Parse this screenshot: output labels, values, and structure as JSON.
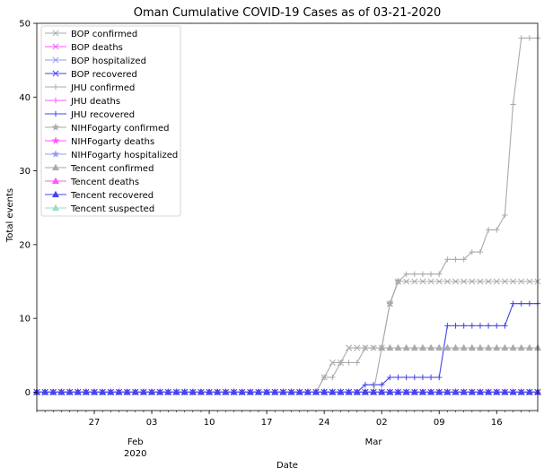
{
  "chart_data": {
    "type": "line",
    "title": "Oman Cumulative COVID-19 Cases as of 03-21-2020",
    "xlabel": "Date",
    "ylabel": "Total events",
    "x_range": [
      "2020-01-20",
      "2020-03-21"
    ],
    "ylim": [
      -2.5,
      50
    ],
    "yticks": [
      0,
      10,
      20,
      30,
      40,
      50
    ],
    "xticks": [
      {
        "date": "2020-01-27",
        "label": "27"
      },
      {
        "date": "2020-02-03",
        "label": "03"
      },
      {
        "date": "2020-02-10",
        "label": "10"
      },
      {
        "date": "2020-02-17",
        "label": "17"
      },
      {
        "date": "2020-02-24",
        "label": "24"
      },
      {
        "date": "2020-03-02",
        "label": "02"
      },
      {
        "date": "2020-03-09",
        "label": "09"
      },
      {
        "date": "2020-03-16",
        "label": "16"
      }
    ],
    "month_labels": [
      {
        "date": "2020-02-01",
        "line1": "Feb",
        "line2": "2020"
      },
      {
        "date": "2020-03-01",
        "line1": "Mar",
        "line2": ""
      }
    ],
    "grid": false,
    "legend_position": "top-left",
    "series": [
      {
        "name": "BOP confirmed",
        "color": "#aaaaaa",
        "marker": "x",
        "points": [
          [
            "2020-01-20",
            0
          ],
          [
            "2020-02-23",
            0
          ],
          [
            "2020-02-24",
            2
          ],
          [
            "2020-02-25",
            4
          ],
          [
            "2020-02-26",
            4
          ],
          [
            "2020-02-27",
            6
          ],
          [
            "2020-03-02",
            6
          ],
          [
            "2020-03-03",
            12
          ],
          [
            "2020-03-04",
            15
          ],
          [
            "2020-03-21",
            15
          ]
        ]
      },
      {
        "name": "BOP deaths",
        "color": "#ff55ff",
        "marker": "x",
        "points": [
          [
            "2020-01-20",
            0
          ],
          [
            "2020-03-21",
            0
          ]
        ]
      },
      {
        "name": "BOP hospitalized",
        "color": "#9999ee",
        "marker": "x",
        "points": [
          [
            "2020-01-20",
            0
          ],
          [
            "2020-03-21",
            0
          ]
        ]
      },
      {
        "name": "BOP recovered",
        "color": "#4444ee",
        "marker": "x",
        "points": [
          [
            "2020-01-20",
            0
          ],
          [
            "2020-03-21",
            0
          ]
        ]
      },
      {
        "name": "JHU confirmed",
        "color": "#aaaaaa",
        "marker": "plus",
        "points": [
          [
            "2020-01-20",
            0
          ],
          [
            "2020-02-23",
            0
          ],
          [
            "2020-02-24",
            2
          ],
          [
            "2020-02-25",
            2
          ],
          [
            "2020-02-26",
            4
          ],
          [
            "2020-02-27",
            4
          ],
          [
            "2020-02-28",
            4
          ],
          [
            "2020-02-29",
            6
          ],
          [
            "2020-03-01",
            6
          ],
          [
            "2020-03-02",
            6
          ],
          [
            "2020-03-03",
            12
          ],
          [
            "2020-03-04",
            15
          ],
          [
            "2020-03-05",
            16
          ],
          [
            "2020-03-08",
            16
          ],
          [
            "2020-03-09",
            16
          ],
          [
            "2020-03-10",
            18
          ],
          [
            "2020-03-12",
            18
          ],
          [
            "2020-03-13",
            19
          ],
          [
            "2020-03-14",
            19
          ],
          [
            "2020-03-15",
            22
          ],
          [
            "2020-03-16",
            22
          ],
          [
            "2020-03-17",
            24
          ],
          [
            "2020-03-18",
            39
          ],
          [
            "2020-03-19",
            48
          ],
          [
            "2020-03-20",
            48
          ],
          [
            "2020-03-21",
            48
          ]
        ]
      },
      {
        "name": "JHU deaths",
        "color": "#ff55ff",
        "marker": "plus",
        "points": [
          [
            "2020-01-20",
            0
          ],
          [
            "2020-03-21",
            0
          ]
        ]
      },
      {
        "name": "JHU recovered",
        "color": "#4444ee",
        "marker": "plus",
        "points": [
          [
            "2020-01-20",
            0
          ],
          [
            "2020-02-28",
            0
          ],
          [
            "2020-02-29",
            1
          ],
          [
            "2020-03-02",
            1
          ],
          [
            "2020-03-03",
            2
          ],
          [
            "2020-03-09",
            2
          ],
          [
            "2020-03-10",
            9
          ],
          [
            "2020-03-17",
            9
          ],
          [
            "2020-03-18",
            12
          ],
          [
            "2020-03-21",
            12
          ]
        ]
      },
      {
        "name": "NIHFogarty confirmed",
        "color": "#aaaaaa",
        "marker": "star",
        "points": [
          [
            "2020-03-03",
            12
          ],
          [
            "2020-03-04",
            15
          ]
        ]
      },
      {
        "name": "NIHFogarty deaths",
        "color": "#ff55ff",
        "marker": "star",
        "points": []
      },
      {
        "name": "NIHFogarty hospitalized",
        "color": "#9999ee",
        "marker": "star",
        "points": []
      },
      {
        "name": "Tencent confirmed",
        "color": "#aaaaaa",
        "marker": "triangle",
        "points": [
          [
            "2020-01-20",
            0
          ],
          [
            "2020-03-01",
            0
          ],
          [
            "2020-03-02",
            6
          ],
          [
            "2020-03-21",
            6
          ]
        ]
      },
      {
        "name": "Tencent deaths",
        "color": "#ff55ff",
        "marker": "triangle",
        "points": [
          [
            "2020-01-20",
            0
          ],
          [
            "2020-03-21",
            0
          ]
        ]
      },
      {
        "name": "Tencent recovered",
        "color": "#4444ee",
        "marker": "triangle",
        "points": [
          [
            "2020-01-20",
            0
          ],
          [
            "2020-03-21",
            0
          ]
        ]
      },
      {
        "name": "Tencent suspected",
        "color": "#99ddcc",
        "marker": "triangle",
        "points": []
      }
    ]
  }
}
